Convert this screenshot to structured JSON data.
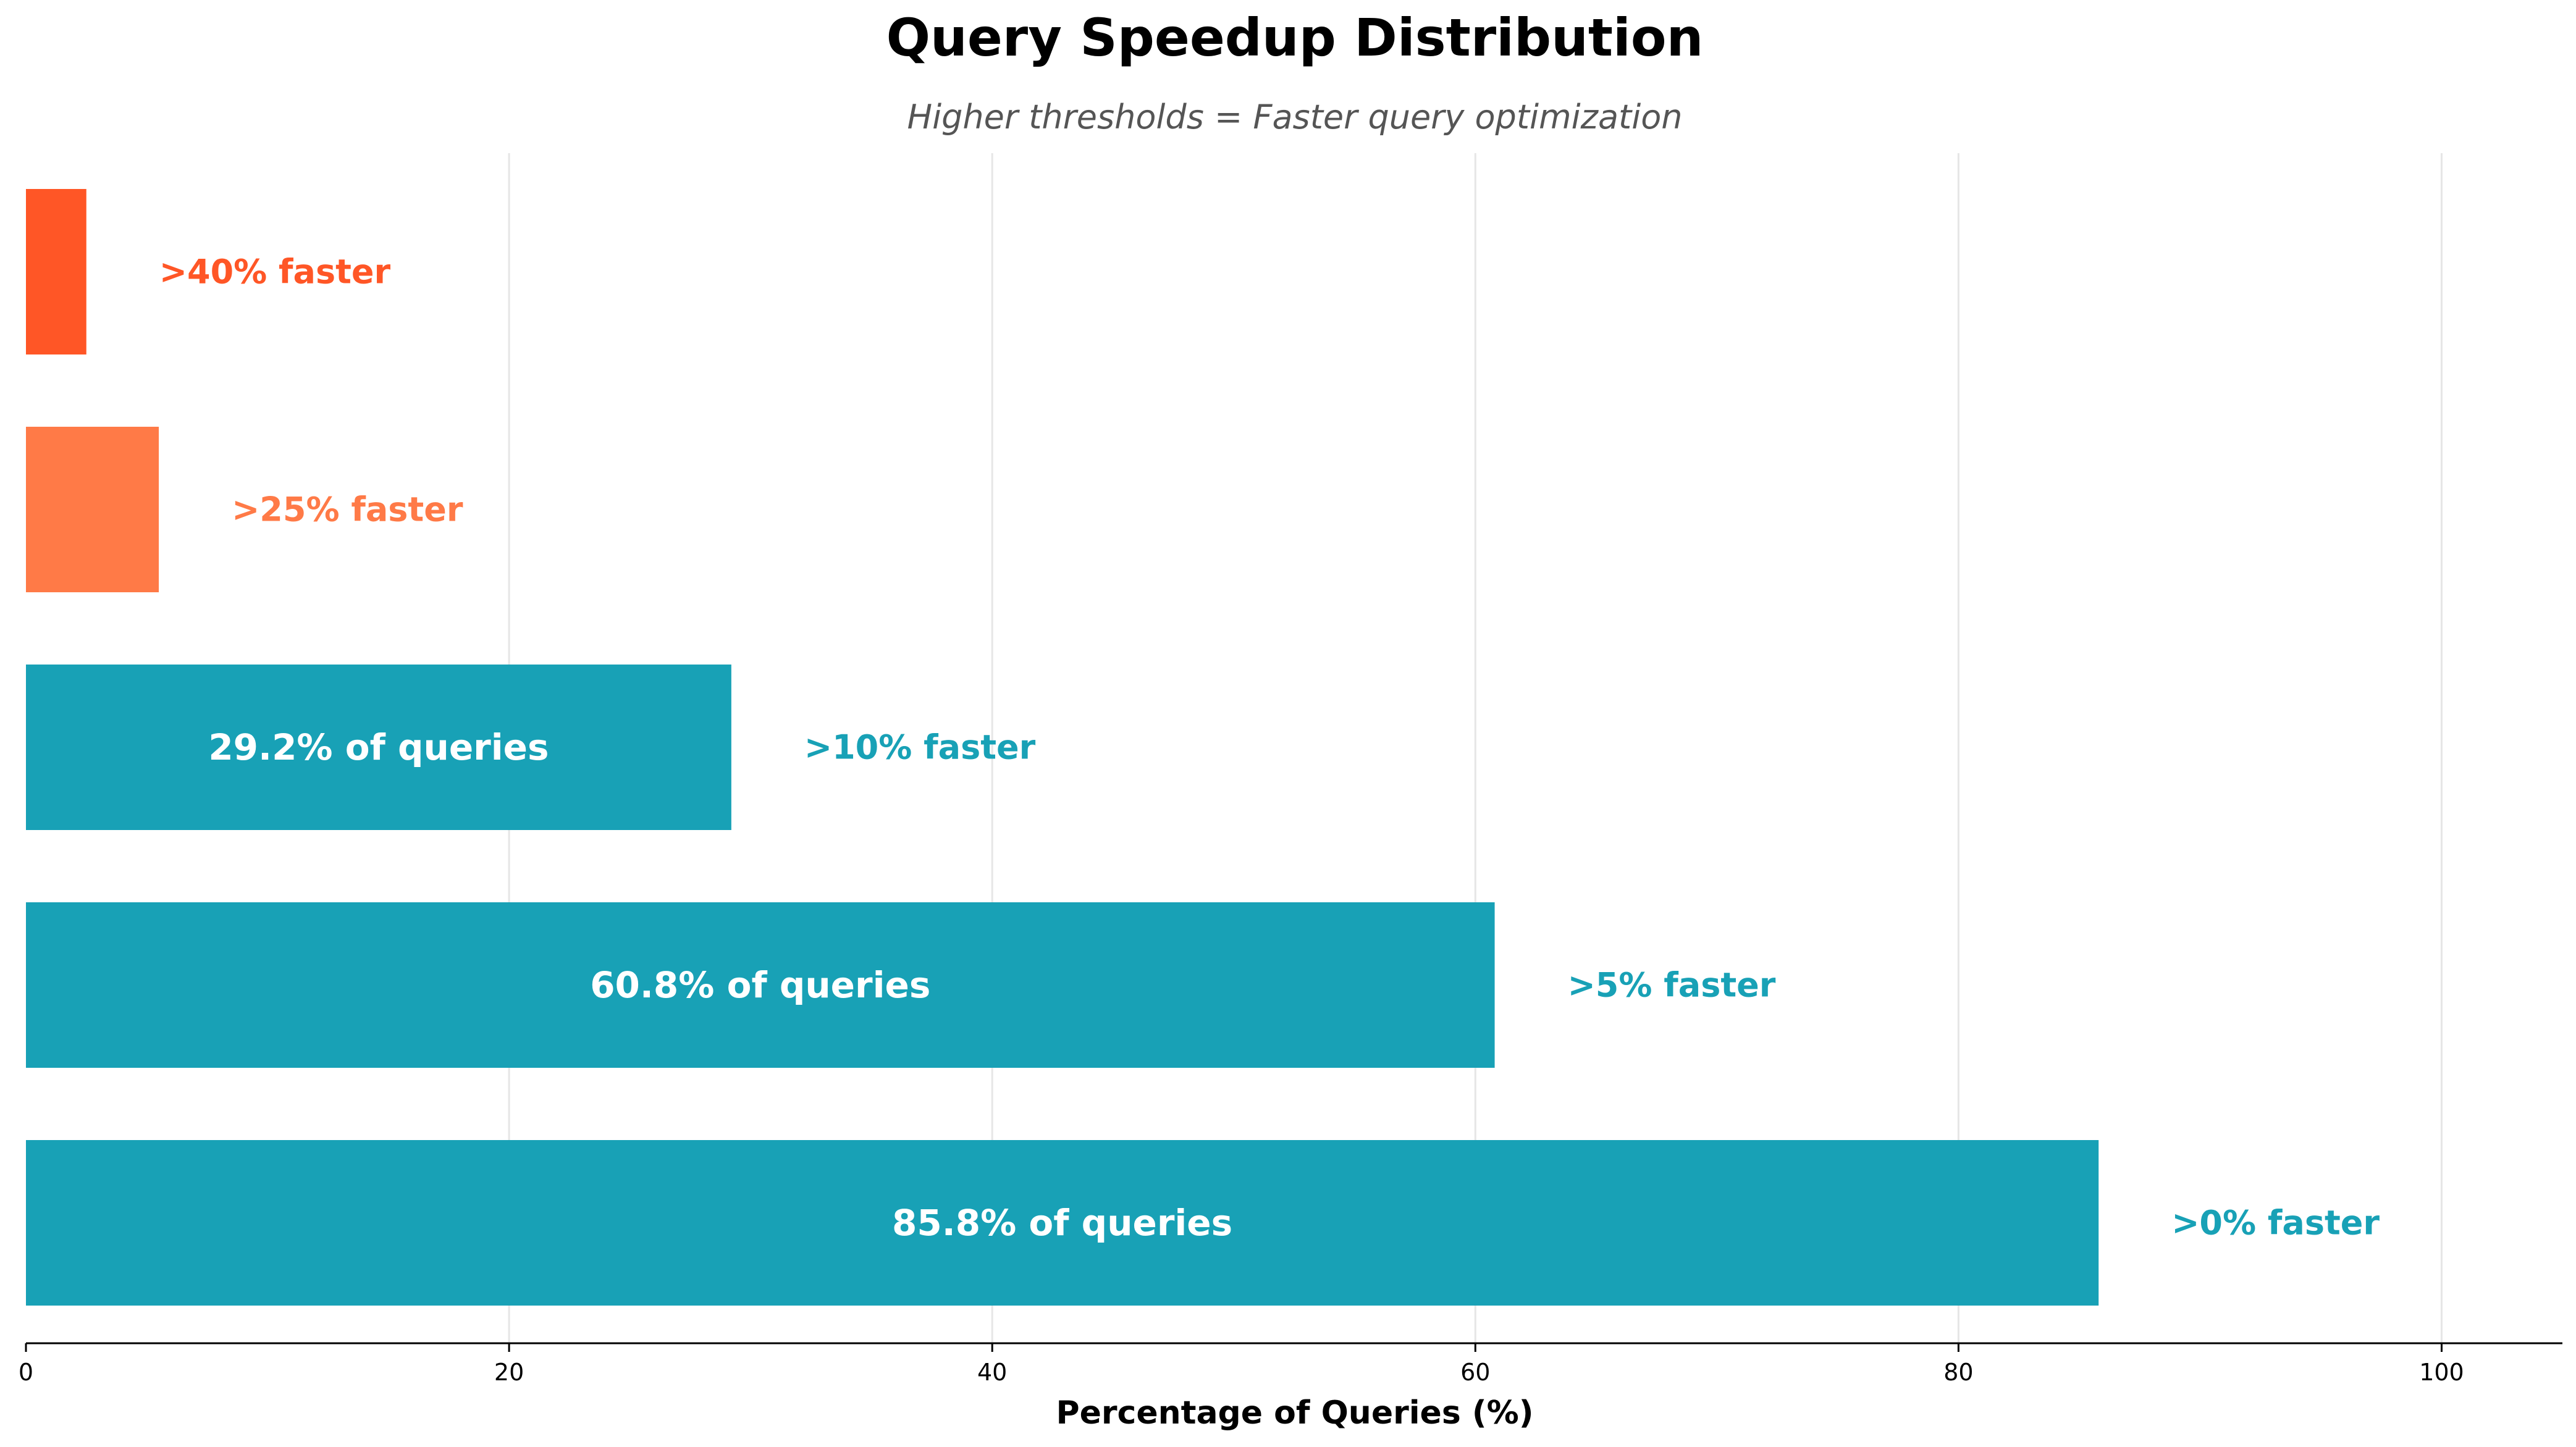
{
  "chart_data": {
    "type": "bar",
    "orientation": "horizontal",
    "title": "Query Speedup Distribution",
    "subtitle": "Higher thresholds = Faster query optimization",
    "xlabel": "Percentage of Queries (%)",
    "ylabel": "",
    "xlim": [
      0,
      105
    ],
    "xticks": [
      0,
      20,
      40,
      60,
      80,
      100
    ],
    "xtick_labels": [
      "0",
      "20",
      "40",
      "60",
      "80",
      "100"
    ],
    "grid": true,
    "legend": "none",
    "categories": [
      ">0% faster",
      ">5% faster",
      ">10% faster",
      ">25% faster",
      ">40% faster"
    ],
    "values": [
      85.8,
      60.8,
      29.2,
      5.5,
      2.5
    ],
    "bar_labels": [
      "85.8% of queries",
      "60.8% of queries",
      "29.2% of queries",
      "",
      ""
    ],
    "colors": [
      "#18a1b6",
      "#18a1b6",
      "#18a1b6",
      "#ff7a47",
      "#ff5626"
    ]
  }
}
